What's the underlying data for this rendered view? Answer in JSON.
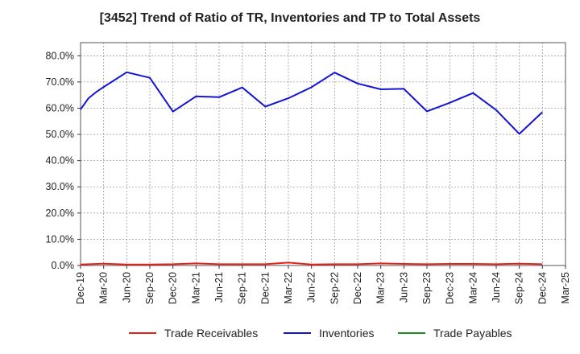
{
  "chart_data": {
    "type": "line",
    "title": "[3452]  Trend of Ratio of TR, Inventories and TP to Total Assets",
    "xlabel": "",
    "ylabel": "",
    "ylim": [
      0,
      0.85
    ],
    "yticks": [
      "0.0%",
      "10.0%",
      "20.0%",
      "30.0%",
      "40.0%",
      "50.0%",
      "60.0%",
      "70.0%",
      "80.0%"
    ],
    "ytick_values": [
      0,
      0.1,
      0.2,
      0.3,
      0.4,
      0.5,
      0.6,
      0.7,
      0.8
    ],
    "x_tick_labels": [
      "Dec-19",
      "Mar-20",
      "Jun-20",
      "Sep-20",
      "Dec-20",
      "Mar-21",
      "Jun-21",
      "Sep-21",
      "Dec-21",
      "Mar-22",
      "Jun-22",
      "Sep-22",
      "Dec-22",
      "Mar-23",
      "Jun-23",
      "Sep-23",
      "Dec-23",
      "Mar-24",
      "Jun-24",
      "Sep-24",
      "Dec-24",
      "Mar-25"
    ],
    "grid": true,
    "legend_position": "bottom",
    "series": [
      {
        "name": "Trade Receivables",
        "color": "#e8201a",
        "points": [
          [
            "Dec-19",
            0.004
          ],
          [
            "Mar-20",
            0.007
          ],
          [
            "Jun-20",
            0.004
          ],
          [
            "Sep-20",
            0.004
          ],
          [
            "Dec-20",
            0.005
          ],
          [
            "Mar-21",
            0.008
          ],
          [
            "Jun-21",
            0.005
          ],
          [
            "Sep-21",
            0.005
          ],
          [
            "Dec-21",
            0.005
          ],
          [
            "Mar-22",
            0.011
          ],
          [
            "Jun-22",
            0.004
          ],
          [
            "Sep-22",
            0.005
          ],
          [
            "Dec-22",
            0.005
          ],
          [
            "Mar-23",
            0.008
          ],
          [
            "Jun-23",
            0.006
          ],
          [
            "Sep-23",
            0.005
          ],
          [
            "Dec-23",
            0.006
          ],
          [
            "Mar-24",
            0.006
          ],
          [
            "Jun-24",
            0.005
          ],
          [
            "Sep-24",
            0.007
          ],
          [
            "Dec-24",
            0.005
          ]
        ]
      },
      {
        "name": "Inventories",
        "color": "#1414d4",
        "points": [
          [
            "Dec-19",
            0.595
          ],
          [
            "Jan-20",
            0.637
          ],
          [
            "Feb-20",
            0.661
          ],
          [
            "Mar-20",
            0.681
          ],
          [
            "Jun-20",
            0.737
          ],
          [
            "Sep-20",
            0.716
          ],
          [
            "Dec-20",
            0.587
          ],
          [
            "Mar-21",
            0.645
          ],
          [
            "Jun-21",
            0.642
          ],
          [
            "Sep-21",
            0.679
          ],
          [
            "Dec-21",
            0.606
          ],
          [
            "Mar-22",
            0.638
          ],
          [
            "Jun-22",
            0.68
          ],
          [
            "Sep-22",
            0.736
          ],
          [
            "Dec-22",
            0.694
          ],
          [
            "Mar-23",
            0.672
          ],
          [
            "Jun-23",
            0.674
          ],
          [
            "Sep-23",
            0.588
          ],
          [
            "Dec-23",
            0.621
          ],
          [
            "Mar-24",
            0.658
          ],
          [
            "Jun-24",
            0.593
          ],
          [
            "Sep-24",
            0.502
          ],
          [
            "Dec-24",
            0.585
          ]
        ]
      },
      {
        "name": "Trade Payables",
        "color": "#1e8c1e",
        "points": []
      }
    ]
  }
}
